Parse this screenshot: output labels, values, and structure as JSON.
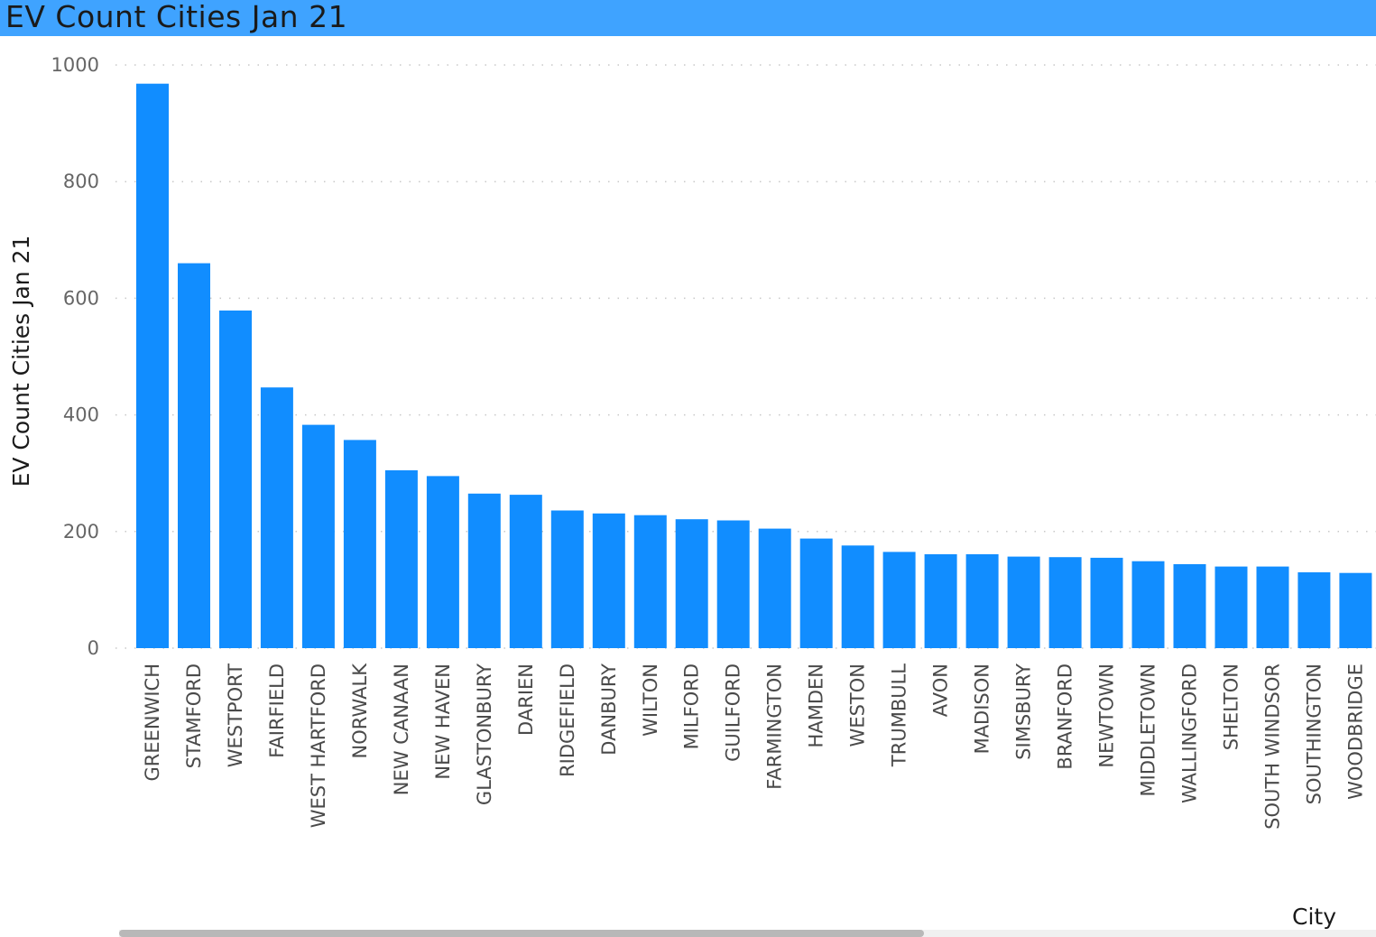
{
  "header": {
    "title": "EV Count Cities Jan 21"
  },
  "colors": {
    "title_bar": "#3fa3ff",
    "bar": "#118dff",
    "grid": "#c8c8c8"
  },
  "chart_data": {
    "type": "bar",
    "title": "EV Count Cities Jan 21",
    "xlabel": "City",
    "ylabel": "EV Count Cities Jan 21",
    "ylim": [
      0,
      1000
    ],
    "yticks": [
      0,
      200,
      400,
      600,
      800,
      1000
    ],
    "grid": true,
    "categories": [
      "GREENWICH",
      "STAMFORD",
      "WESTPORT",
      "FAIRFIELD",
      "WEST HARTFORD",
      "NORWALK",
      "NEW CANAAN",
      "NEW HAVEN",
      "GLASTONBURY",
      "DARIEN",
      "RIDGEFIELD",
      "DANBURY",
      "WILTON",
      "MILFORD",
      "GUILFORD",
      "FARMINGTON",
      "HAMDEN",
      "WESTON",
      "TRUMBULL",
      "AVON",
      "MADISON",
      "SIMSBURY",
      "BRANFORD",
      "NEWTOWN",
      "MIDDLETOWN",
      "WALLINGFORD",
      "SHELTON",
      "SOUTH WINDSOR",
      "SOUTHINGTON",
      "WOODBRIDGE"
    ],
    "values": [
      968,
      660,
      579,
      447,
      383,
      357,
      305,
      295,
      265,
      263,
      236,
      231,
      228,
      221,
      219,
      205,
      188,
      176,
      165,
      161,
      161,
      157,
      156,
      155,
      149,
      144,
      140,
      140,
      130,
      129
    ]
  }
}
